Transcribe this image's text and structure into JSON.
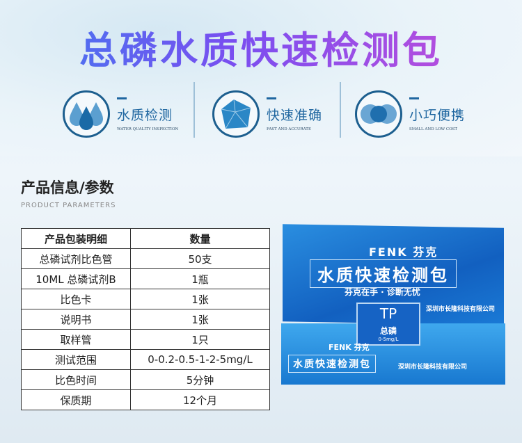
{
  "title": "总磷水质快速检测包",
  "features": [
    {
      "icon": "water-drops-icon",
      "cn": "水质检测",
      "en": "WATER QUALITY INSPECTION"
    },
    {
      "icon": "pentagon-gem-icon",
      "cn": "快速准确",
      "en": "FAST AND ACCURATE"
    },
    {
      "icon": "overlapping-circles-icon",
      "cn": "小巧便携",
      "en": "SMALL AND LOW COST"
    }
  ],
  "section": {
    "title": "产品信息/参数",
    "subtitle": "PRODUCT PARAMETERS"
  },
  "table": {
    "headers": [
      "产品包装明细",
      "数量"
    ],
    "rows": [
      [
        "总磷试剂比色管",
        "50支"
      ],
      [
        "10ML 总磷试剂B",
        "1瓶"
      ],
      [
        "比色卡",
        "1张"
      ],
      [
        "说明书",
        "1张"
      ],
      [
        "取样管",
        "1只"
      ],
      [
        "测试范围",
        "0-0.2-0.5-1-2-5mg/L"
      ],
      [
        "比色时间",
        "5分钟"
      ],
      [
        "保质期",
        "12个月"
      ]
    ]
  },
  "product_box": {
    "brand": "FENK 芬克",
    "name": "水质快速检测包",
    "slogan": "芬克在手 · 诊断无忧",
    "code": "TP",
    "label": "总磷",
    "range": "0-5mg/L",
    "company": "深圳市长隆科技有限公司"
  },
  "colors": {
    "accent": "#1f66a0",
    "title_start": "#3d7cf0",
    "title_end": "#c84ed8"
  }
}
